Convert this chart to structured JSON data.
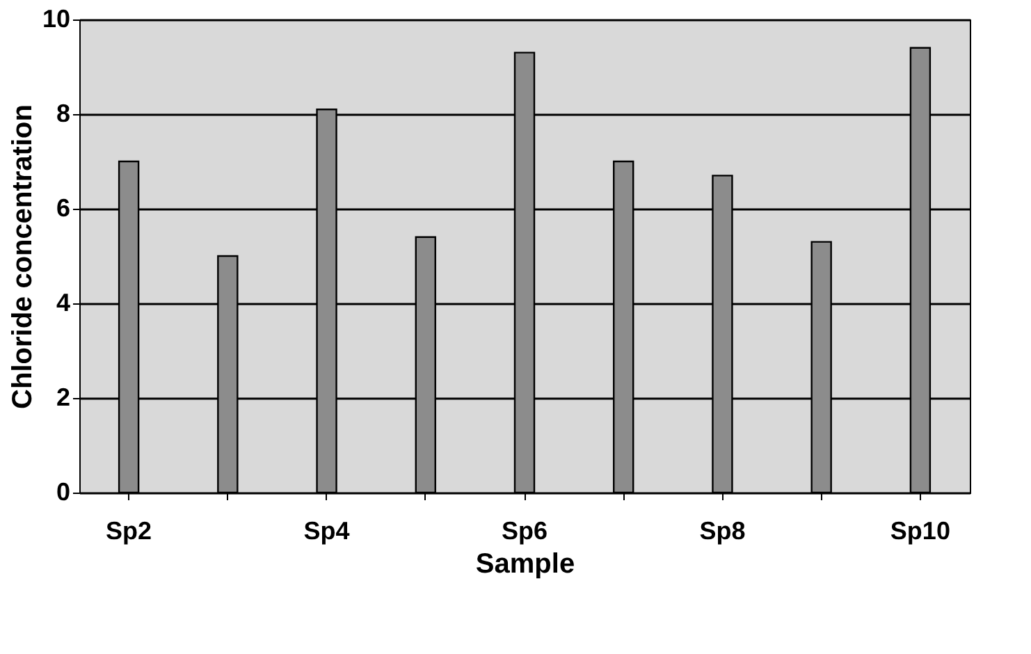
{
  "chart_data": {
    "type": "bar",
    "xlabel": "Sample",
    "ylabel": "Chloride concentration",
    "categories": [
      "Sp2",
      null,
      "Sp4",
      null,
      "Sp6",
      null,
      "Sp8",
      null,
      "Sp10"
    ],
    "values": [
      7.0,
      5.0,
      8.1,
      5.4,
      9.3,
      7.0,
      6.7,
      5.3,
      9.4
    ],
    "color": "#8c8c8c",
    "ylim": [
      0,
      10
    ],
    "yticks": [
      0,
      2,
      4,
      6,
      8,
      10
    ],
    "grid": "y"
  }
}
